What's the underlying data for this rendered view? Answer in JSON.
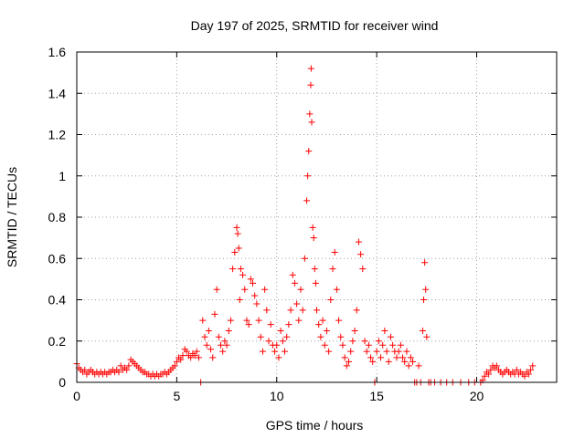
{
  "chart_data": {
    "type": "scatter",
    "title": "Day 197 of 2025, SRMTID for receiver wind",
    "xlabel": "GPS time / hours",
    "ylabel": "SRMTID / TECUs",
    "xlim": [
      0,
      24
    ],
    "ylim": [
      0,
      1.6
    ],
    "xticks": [
      0,
      5,
      10,
      15,
      20
    ],
    "xtick_labels": [
      "0",
      "5",
      "10",
      "15",
      "20"
    ],
    "yticks": [
      0,
      0.2,
      0.4,
      0.6,
      0.8,
      1.0,
      1.2,
      1.4,
      1.6
    ],
    "ytick_labels": [
      "0",
      "0.2",
      "0.4",
      "0.6",
      "0.8",
      "1",
      "1.2",
      "1.4",
      "1.6"
    ],
    "grid": true,
    "marker": "plus",
    "color": "#ff0000",
    "series": [
      {
        "name": "SRMTID",
        "points": [
          [
            0.0,
            0.09
          ],
          [
            0.1,
            0.07
          ],
          [
            0.2,
            0.06
          ],
          [
            0.3,
            0.05
          ],
          [
            0.4,
            0.06
          ],
          [
            0.5,
            0.04
          ],
          [
            0.6,
            0.05
          ],
          [
            0.7,
            0.06
          ],
          [
            0.8,
            0.05
          ],
          [
            0.9,
            0.04
          ],
          [
            1.0,
            0.05
          ],
          [
            1.1,
            0.04
          ],
          [
            1.2,
            0.05
          ],
          [
            1.3,
            0.04
          ],
          [
            1.4,
            0.05
          ],
          [
            1.5,
            0.04
          ],
          [
            1.6,
            0.05
          ],
          [
            1.7,
            0.05
          ],
          [
            1.8,
            0.06
          ],
          [
            1.9,
            0.05
          ],
          [
            2.0,
            0.06
          ],
          [
            2.1,
            0.05
          ],
          [
            2.2,
            0.08
          ],
          [
            2.3,
            0.06
          ],
          [
            2.4,
            0.07
          ],
          [
            2.5,
            0.06
          ],
          [
            2.6,
            0.08
          ],
          [
            2.7,
            0.11
          ],
          [
            2.8,
            0.1
          ],
          [
            2.9,
            0.09
          ],
          [
            3.0,
            0.08
          ],
          [
            3.1,
            0.07
          ],
          [
            3.2,
            0.06
          ],
          [
            3.3,
            0.05
          ],
          [
            3.4,
            0.05
          ],
          [
            3.5,
            0.04
          ],
          [
            3.6,
            0.04
          ],
          [
            3.7,
            0.03
          ],
          [
            3.8,
            0.04
          ],
          [
            3.9,
            0.03
          ],
          [
            4.0,
            0.04
          ],
          [
            4.1,
            0.03
          ],
          [
            4.2,
            0.04
          ],
          [
            4.3,
            0.04
          ],
          [
            4.4,
            0.05
          ],
          [
            4.5,
            0.04
          ],
          [
            4.6,
            0.05
          ],
          [
            4.7,
            0.06
          ],
          [
            4.8,
            0.07
          ],
          [
            4.9,
            0.08
          ],
          [
            5.0,
            0.1
          ],
          [
            5.1,
            0.12
          ],
          [
            5.2,
            0.11
          ],
          [
            5.3,
            0.13
          ],
          [
            5.4,
            0.16
          ],
          [
            5.5,
            0.15
          ],
          [
            5.6,
            0.13
          ],
          [
            5.7,
            0.12
          ],
          [
            5.8,
            0.14
          ],
          [
            5.9,
            0.13
          ],
          [
            6.0,
            0.15
          ],
          [
            6.1,
            0.12
          ],
          [
            6.2,
            0.0
          ],
          [
            6.3,
            0.3
          ],
          [
            6.4,
            0.22
          ],
          [
            6.5,
            0.18
          ],
          [
            6.6,
            0.25
          ],
          [
            6.7,
            0.16
          ],
          [
            6.8,
            0.12
          ],
          [
            6.9,
            0.33
          ],
          [
            7.0,
            0.45
          ],
          [
            7.1,
            0.22
          ],
          [
            7.2,
            0.18
          ],
          [
            7.3,
            0.15
          ],
          [
            7.4,
            0.2
          ],
          [
            7.5,
            0.18
          ],
          [
            7.6,
            0.25
          ],
          [
            7.7,
            0.3
          ],
          [
            7.8,
            0.55
          ],
          [
            7.9,
            0.63
          ],
          [
            8.0,
            0.75
          ],
          [
            8.05,
            0.72
          ],
          [
            8.1,
            0.65
          ],
          [
            8.15,
            0.4
          ],
          [
            8.2,
            0.55
          ],
          [
            8.3,
            0.52
          ],
          [
            8.4,
            0.45
          ],
          [
            8.5,
            0.3
          ],
          [
            8.6,
            0.28
          ],
          [
            8.7,
            0.5
          ],
          [
            8.8,
            0.48
          ],
          [
            8.9,
            0.42
          ],
          [
            9.0,
            0.38
          ],
          [
            9.1,
            0.3
          ],
          [
            9.2,
            0.22
          ],
          [
            9.3,
            0.15
          ],
          [
            9.4,
            0.45
          ],
          [
            9.5,
            0.35
          ],
          [
            9.6,
            0.2
          ],
          [
            9.7,
            0.28
          ],
          [
            9.8,
            0.18
          ],
          [
            9.9,
            0.15
          ],
          [
            10.0,
            0.18
          ],
          [
            10.1,
            0.12
          ],
          [
            10.2,
            0.25
          ],
          [
            10.3,
            0.2
          ],
          [
            10.4,
            0.15
          ],
          [
            10.5,
            0.22
          ],
          [
            10.6,
            0.28
          ],
          [
            10.7,
            0.35
          ],
          [
            10.8,
            0.52
          ],
          [
            10.9,
            0.48
          ],
          [
            11.0,
            0.38
          ],
          [
            11.1,
            0.3
          ],
          [
            11.2,
            0.45
          ],
          [
            11.3,
            0.35
          ],
          [
            11.4,
            0.6
          ],
          [
            11.5,
            0.88
          ],
          [
            11.55,
            1.0
          ],
          [
            11.6,
            1.12
          ],
          [
            11.65,
            1.3
          ],
          [
            11.7,
            1.44
          ],
          [
            11.72,
            1.52
          ],
          [
            11.75,
            1.26
          ],
          [
            11.8,
            0.75
          ],
          [
            11.85,
            0.7
          ],
          [
            11.9,
            0.55
          ],
          [
            11.95,
            0.48
          ],
          [
            12.0,
            0.35
          ],
          [
            12.1,
            0.28
          ],
          [
            12.2,
            0.22
          ],
          [
            12.3,
            0.3
          ],
          [
            12.4,
            0.18
          ],
          [
            12.5,
            0.25
          ],
          [
            12.6,
            0.15
          ],
          [
            12.7,
            0.4
          ],
          [
            12.8,
            0.55
          ],
          [
            12.9,
            0.63
          ],
          [
            13.0,
            0.45
          ],
          [
            13.1,
            0.3
          ],
          [
            13.2,
            0.22
          ],
          [
            13.3,
            0.18
          ],
          [
            13.4,
            0.12
          ],
          [
            13.5,
            0.08
          ],
          [
            13.6,
            0.1
          ],
          [
            13.7,
            0.15
          ],
          [
            13.8,
            0.2
          ],
          [
            13.9,
            0.25
          ],
          [
            14.0,
            0.35
          ],
          [
            14.1,
            0.68
          ],
          [
            14.2,
            0.62
          ],
          [
            14.3,
            0.55
          ],
          [
            14.4,
            0.2
          ],
          [
            14.5,
            0.15
          ],
          [
            14.6,
            0.18
          ],
          [
            14.7,
            0.12
          ],
          [
            14.8,
            0.1
          ],
          [
            14.9,
            0.0
          ],
          [
            15.0,
            0.15
          ],
          [
            15.1,
            0.2
          ],
          [
            15.2,
            0.12
          ],
          [
            15.3,
            0.18
          ],
          [
            15.4,
            0.25
          ],
          [
            15.5,
            0.15
          ],
          [
            15.6,
            0.1
          ],
          [
            15.7,
            0.22
          ],
          [
            15.8,
            0.18
          ],
          [
            15.9,
            0.15
          ],
          [
            16.0,
            0.12
          ],
          [
            16.1,
            0.15
          ],
          [
            16.2,
            0.18
          ],
          [
            16.3,
            0.12
          ],
          [
            16.4,
            0.1
          ],
          [
            16.5,
            0.15
          ],
          [
            16.6,
            0.08
          ],
          [
            16.7,
            0.12
          ],
          [
            16.8,
            0.1
          ],
          [
            16.9,
            0.0
          ],
          [
            17.0,
            0.0
          ],
          [
            17.1,
            0.08
          ],
          [
            17.2,
            0.0
          ],
          [
            17.3,
            0.25
          ],
          [
            17.35,
            0.4
          ],
          [
            17.4,
            0.58
          ],
          [
            17.45,
            0.45
          ],
          [
            17.5,
            0.22
          ],
          [
            17.6,
            0.0
          ],
          [
            17.7,
            0.0
          ],
          [
            17.9,
            0.0
          ],
          [
            18.2,
            0.0
          ],
          [
            18.5,
            0.0
          ],
          [
            18.8,
            0.0
          ],
          [
            19.2,
            0.0
          ],
          [
            19.6,
            0.0
          ],
          [
            19.9,
            0.0
          ],
          [
            20.2,
            0.0
          ],
          [
            20.3,
            0.01
          ],
          [
            20.4,
            0.03
          ],
          [
            20.5,
            0.05
          ],
          [
            20.6,
            0.04
          ],
          [
            20.7,
            0.06
          ],
          [
            20.8,
            0.08
          ],
          [
            20.9,
            0.07
          ],
          [
            21.0,
            0.08
          ],
          [
            21.1,
            0.06
          ],
          [
            21.2,
            0.05
          ],
          [
            21.3,
            0.04
          ],
          [
            21.4,
            0.05
          ],
          [
            21.5,
            0.06
          ],
          [
            21.6,
            0.05
          ],
          [
            21.7,
            0.04
          ],
          [
            21.8,
            0.05
          ],
          [
            21.9,
            0.04
          ],
          [
            22.0,
            0.06
          ],
          [
            22.1,
            0.04
          ],
          [
            22.2,
            0.05
          ],
          [
            22.3,
            0.04
          ],
          [
            22.4,
            0.03
          ],
          [
            22.5,
            0.05
          ],
          [
            22.6,
            0.04
          ],
          [
            22.7,
            0.06
          ],
          [
            22.8,
            0.08
          ]
        ]
      }
    ]
  }
}
